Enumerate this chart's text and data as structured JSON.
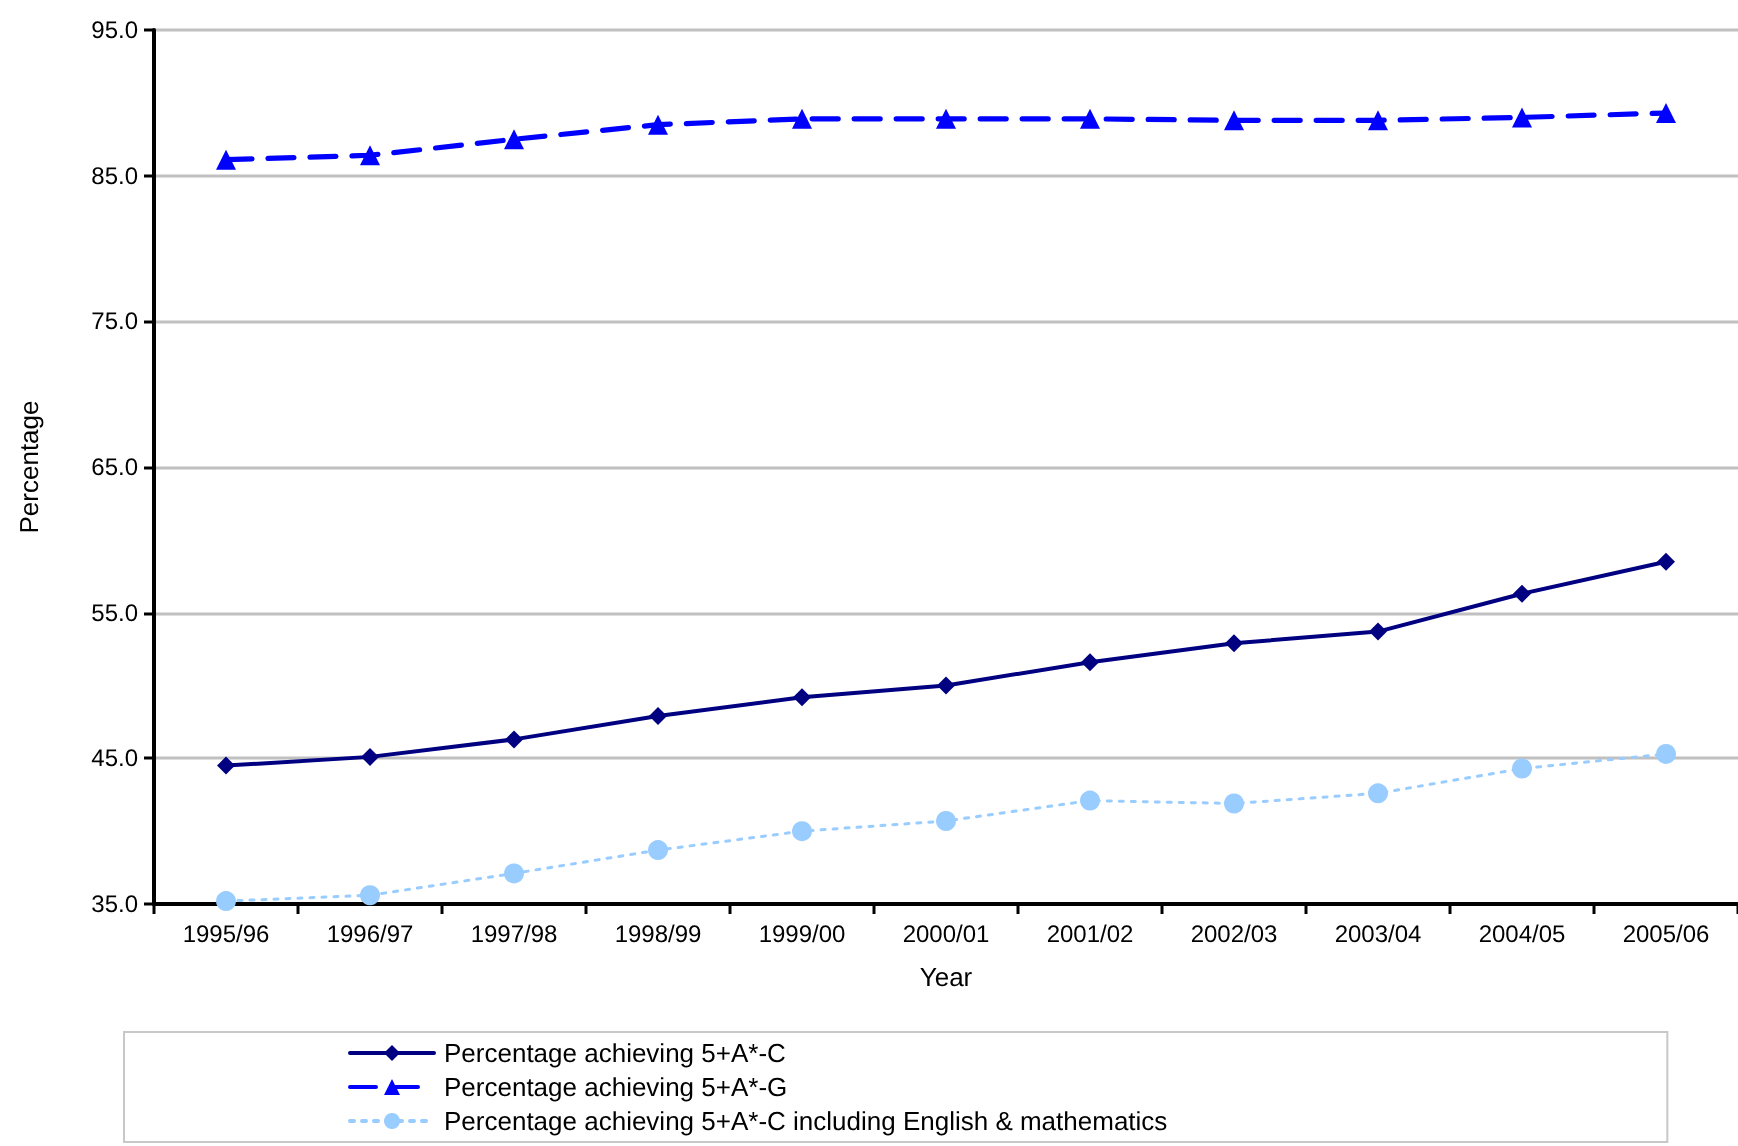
{
  "chart_data": {
    "type": "line",
    "xlabel": "Year",
    "ylabel": "Percentage",
    "categories": [
      "1995/96",
      "1996/97",
      "1997/98",
      "1998/99",
      "1999/00",
      "2000/01",
      "2001/02",
      "2002/03",
      "2003/04",
      "2004/05",
      "2005/06"
    ],
    "series": [
      {
        "name": "Percentage achieving 5+A*-C",
        "color": "#000080",
        "marker": "diamond",
        "line_style": "solid",
        "values": [
          44.5,
          45.1,
          46.3,
          47.9,
          49.2,
          50.0,
          51.6,
          52.9,
          53.7,
          56.3,
          58.5
        ]
      },
      {
        "name": "Percentage achieving 5+A*-G",
        "color": "#0000ff",
        "marker": "triangle",
        "line_style": "dashed",
        "values": [
          86.1,
          86.4,
          87.5,
          88.5,
          88.9,
          88.9,
          88.9,
          88.8,
          88.8,
          89.0,
          89.3
        ]
      },
      {
        "name": "Percentage achieving 5+A*-C including English & mathematics",
        "color": "#99ccff",
        "marker": "circle",
        "line_style": "dotted",
        "values": [
          35.2,
          35.6,
          37.1,
          38.7,
          40.0,
          40.7,
          42.1,
          41.9,
          42.6,
          44.3,
          45.3
        ]
      }
    ],
    "ylim": [
      35,
      95
    ],
    "yticks": [
      {
        "value": 35,
        "label": "35.0"
      },
      {
        "value": 45,
        "label": "45.0"
      },
      {
        "value": 55,
        "label": "55.0"
      },
      {
        "value": 65,
        "label": "65.0"
      },
      {
        "value": 75,
        "label": "75.0"
      },
      {
        "value": 85,
        "label": "85.0"
      },
      {
        "value": 95,
        "label": "95.0"
      }
    ],
    "grid": "y",
    "legend": "bottom"
  }
}
